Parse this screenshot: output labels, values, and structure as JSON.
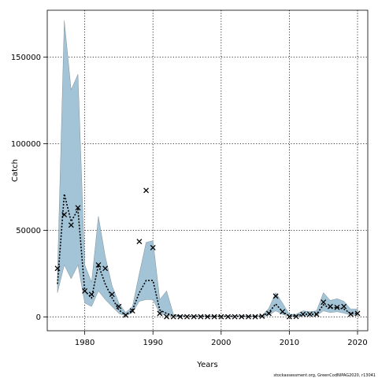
{
  "chart_data": {
    "type": "line",
    "xlabel": "Years",
    "ylabel": "Catch",
    "xlim": [
      1974.5,
      2021.5
    ],
    "ylim": [
      -8000,
      177000
    ],
    "xticks": [
      1980,
      1990,
      2000,
      2010,
      2020
    ],
    "yticks": [
      0,
      50000,
      100000,
      150000
    ],
    "grid": true,
    "footnote": "stockassessment.org, GreenCodNIPAG2020, r13041",
    "series": [
      {
        "type": "band",
        "x": [
          1976,
          1977,
          1978,
          1979,
          1980,
          1981,
          1982,
          1983,
          1984,
          1985,
          1986,
          1987,
          1988,
          1989,
          1990,
          1991,
          1992,
          1993,
          1994,
          1995,
          1996,
          1997,
          1998,
          1999,
          2000,
          2001,
          2002,
          2003,
          2004,
          2005,
          2006,
          2007,
          2008,
          2009,
          2010,
          2011,
          2012,
          2013,
          2014,
          2015,
          2016,
          2017,
          2018,
          2019,
          2020
        ],
        "lower": [
          14000,
          30000,
          22000,
          30000,
          8000,
          6000,
          15000,
          10000,
          6000,
          2000,
          500,
          2500,
          9000,
          10000,
          10000,
          2000,
          800,
          400,
          300,
          300,
          300,
          300,
          300,
          300,
          300,
          300,
          300,
          300,
          300,
          300,
          300,
          1000,
          3500,
          1500,
          200,
          200,
          600,
          600,
          700,
          3500,
          2500,
          3000,
          2200,
          1000,
          1000
        ],
        "upper": [
          25000,
          171000,
          131000,
          140000,
          30000,
          20000,
          58000,
          35000,
          18000,
          8000,
          2500,
          6000,
          25000,
          43000,
          44000,
          10000,
          15000,
          1500,
          800,
          600,
          600,
          600,
          600,
          600,
          600,
          600,
          600,
          600,
          600,
          600,
          800,
          5000,
          14000,
          8000,
          1500,
          1500,
          3500,
          3000,
          3500,
          14000,
          9500,
          10500,
          9000,
          4500,
          4500
        ]
      },
      {
        "type": "line",
        "x": [
          1976,
          1977,
          1978,
          1979,
          1980,
          1981,
          1982,
          1983,
          1984,
          1985,
          1986,
          1987,
          1988,
          1989,
          1990,
          1991,
          1992,
          1993,
          1994,
          1995,
          1996,
          1997,
          1998,
          1999,
          2000,
          2001,
          2002,
          2003,
          2004,
          2005,
          2006,
          2007,
          2008,
          2009,
          2010,
          2011,
          2012,
          2013,
          2014,
          2015,
          2016,
          2017,
          2018,
          2019,
          2020
        ],
        "values": [
          19000,
          71000,
          55000,
          62000,
          15000,
          11000,
          30000,
          19000,
          11000,
          4000,
          1000,
          4000,
          14000,
          21000,
          21000,
          4000,
          2000,
          700,
          500,
          400,
          400,
          400,
          400,
          400,
          400,
          400,
          400,
          400,
          400,
          400,
          500,
          2500,
          7500,
          3000,
          500,
          500,
          1500,
          1500,
          1500,
          7000,
          5000,
          5500,
          4500,
          2000,
          2000
        ]
      },
      {
        "type": "scatter",
        "marker": "x",
        "x": [
          1976,
          1977,
          1978,
          1979,
          1980,
          1981,
          1982,
          1983,
          1984,
          1985,
          1986,
          1987,
          1988,
          1989,
          1990,
          1991,
          1992,
          1993,
          1994,
          1995,
          1996,
          1997,
          1998,
          1999,
          2000,
          2001,
          2002,
          2003,
          2004,
          2005,
          2006,
          2007,
          2008,
          2009,
          2010,
          2011,
          2012,
          2013,
          2014,
          2015,
          2016,
          2017,
          2018,
          2019,
          2020
        ],
        "values": [
          28000,
          59000,
          53000,
          63000,
          15000,
          13000,
          30000,
          28000,
          13000,
          6000,
          1000,
          3500,
          43500,
          73000,
          40000,
          2000,
          100,
          100,
          100,
          100,
          100,
          100,
          100,
          100,
          100,
          100,
          100,
          100,
          100,
          100,
          400,
          2000,
          12000,
          3000,
          100,
          200,
          1500,
          1500,
          1500,
          8500,
          6000,
          5500,
          6000,
          1500,
          2000
        ]
      }
    ],
    "colors": {
      "band_fill": "#a3c4d6",
      "band_edge": "#7f8f99",
      "line": "#000000",
      "marker": "#000000"
    }
  }
}
